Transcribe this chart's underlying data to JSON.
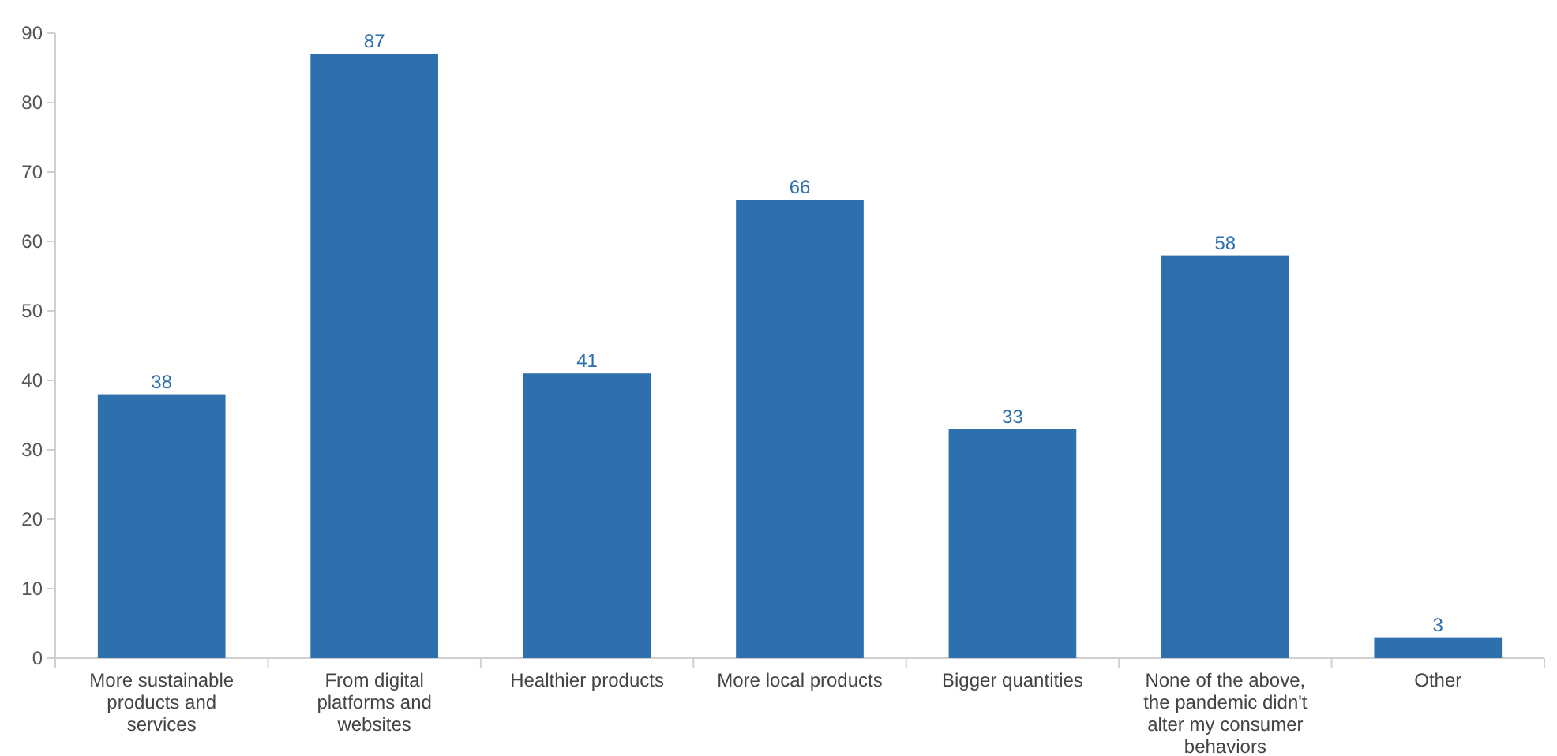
{
  "chart_data": {
    "type": "bar",
    "categories": [
      "More sustainable products and services",
      "From digital platforms and websites",
      "Healthier products",
      "More local products",
      "Bigger quantities",
      "None of the above, the pandemic didn't alter my consumer behaviors",
      "Other"
    ],
    "values": [
      38,
      87,
      41,
      66,
      33,
      58,
      3
    ],
    "color": "#2e70ae",
    "ylim": [
      0,
      90
    ],
    "yticks": [
      0,
      10,
      20,
      30,
      40,
      50,
      60,
      70,
      80,
      90
    ],
    "data_labels": true
  }
}
